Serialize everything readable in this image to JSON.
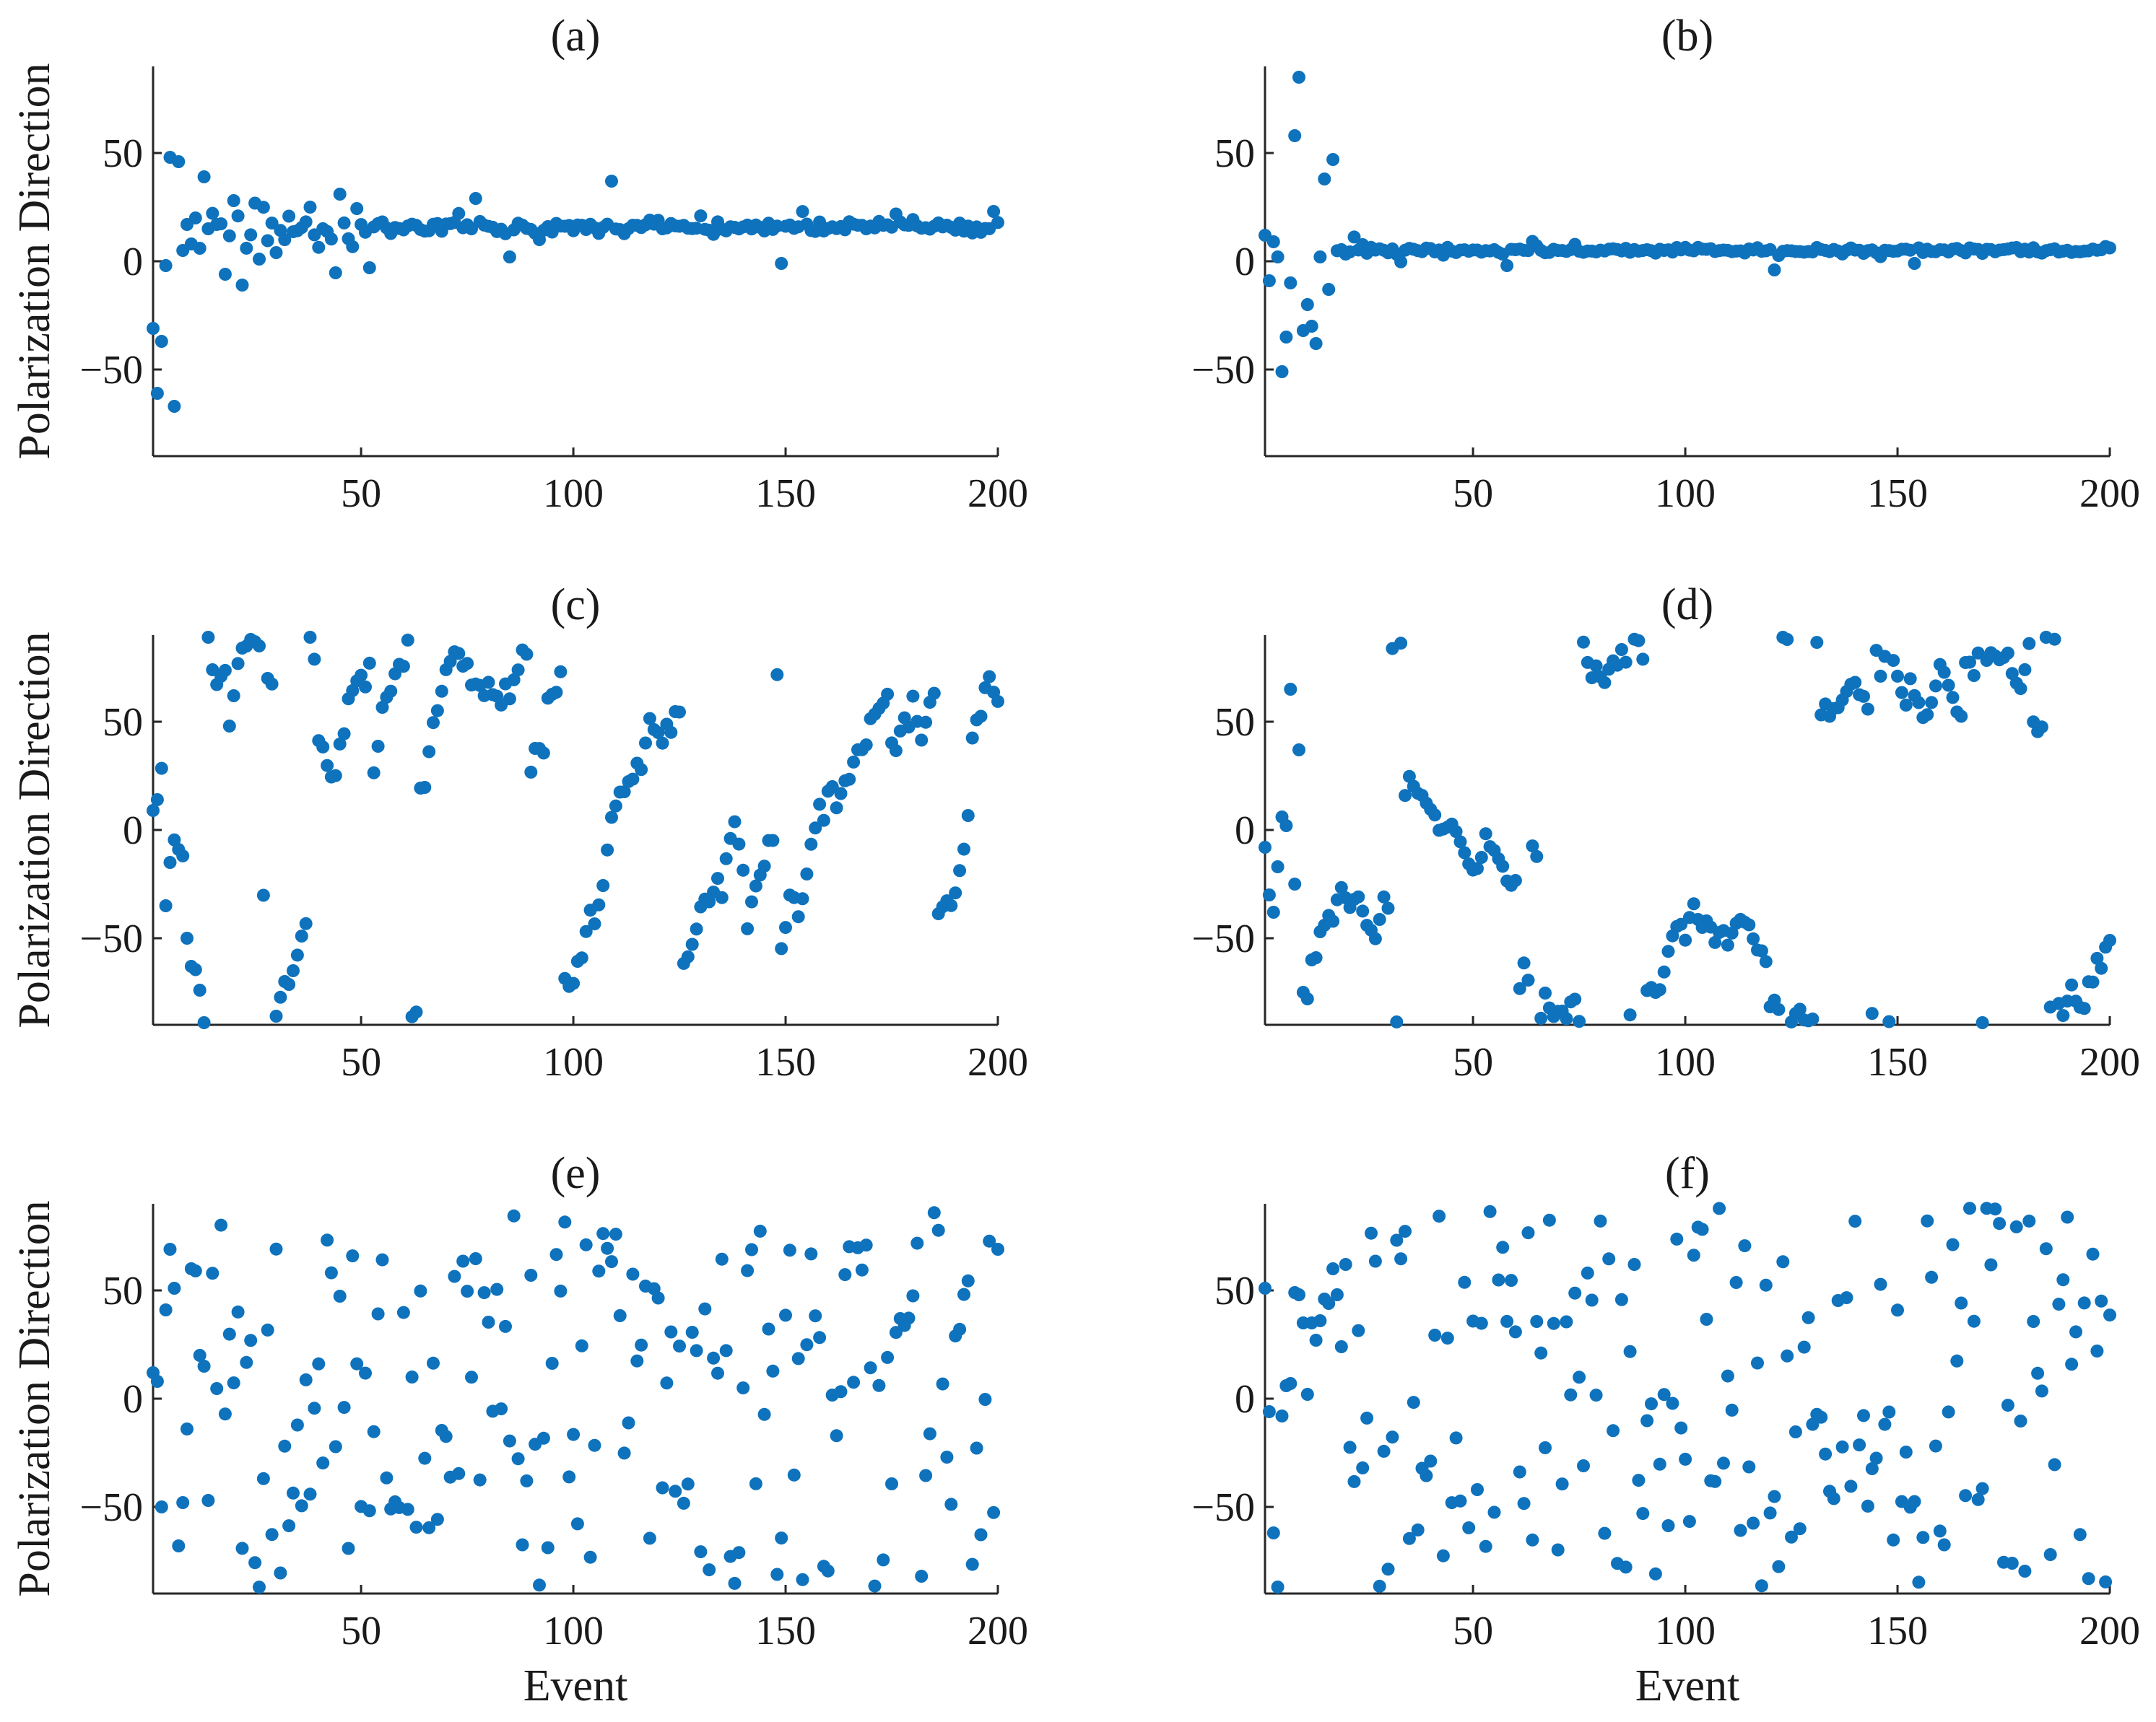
{
  "figure": {
    "ylabel": "Polarization Direction",
    "xlabel": "Event"
  },
  "chart_data": [
    {
      "type": "scatter",
      "title": "(a)",
      "xlabel": "",
      "ylabel": "Polarization Direction",
      "xlim": [
        1,
        200
      ],
      "ylim": [
        -90,
        90
      ],
      "xticks": [
        50,
        100,
        150,
        200
      ],
      "yticks": [
        -50,
        0,
        50
      ],
      "grid": false,
      "color": "#0e72bd",
      "gen": {
        "kind": "converge",
        "seed": 11,
        "center": 16,
        "early_n": 9,
        "early_spread": 75,
        "mid_n": 40,
        "mid_spread": 12,
        "late_spread": 3
      },
      "anchors": [
        [
          1,
          -31
        ],
        [
          2,
          -61
        ],
        [
          3,
          -37
        ],
        [
          4,
          -2
        ],
        [
          5,
          48
        ],
        [
          6,
          -67
        ],
        [
          7,
          46
        ],
        [
          8,
          5
        ],
        [
          9,
          17
        ],
        [
          10,
          8
        ],
        [
          11,
          20
        ],
        [
          12,
          6
        ],
        [
          13,
          39
        ],
        [
          14,
          15
        ],
        [
          16,
          17
        ],
        [
          18,
          -6
        ],
        [
          20,
          28
        ],
        [
          22,
          -11
        ],
        [
          26,
          1
        ],
        [
          30,
          4
        ],
        [
          38,
          25
        ],
        [
          45,
          31
        ],
        [
          52,
          -3
        ],
        [
          77,
          29
        ],
        [
          85,
          2
        ],
        [
          109,
          37
        ],
        [
          149,
          -1
        ],
        [
          199,
          23
        ]
      ]
    },
    {
      "type": "scatter",
      "title": "(b)",
      "xlabel": "",
      "ylabel": "",
      "xlim": [
        1,
        200
      ],
      "ylim": [
        -90,
        90
      ],
      "xticks": [
        50,
        100,
        150,
        200
      ],
      "yticks": [
        -50,
        0,
        50
      ],
      "grid": false,
      "color": "#0e72bd",
      "gen": {
        "kind": "converge",
        "seed": 23,
        "center": 5,
        "early_n": 17,
        "early_spread": 0,
        "mid_n": 20,
        "mid_spread": 3,
        "late_spread": 1.5
      },
      "anchors": [
        [
          1,
          12
        ],
        [
          2,
          -9
        ],
        [
          3,
          9
        ],
        [
          4,
          2
        ],
        [
          5,
          -51
        ],
        [
          6,
          -35
        ],
        [
          7,
          -10
        ],
        [
          8,
          58
        ],
        [
          9,
          85
        ],
        [
          10,
          -32
        ],
        [
          11,
          -20
        ],
        [
          12,
          -30
        ],
        [
          13,
          -38
        ],
        [
          14,
          2
        ],
        [
          15,
          38
        ],
        [
          16,
          -13
        ],
        [
          17,
          47
        ],
        [
          58,
          -2
        ],
        [
          121,
          -4
        ],
        [
          154,
          -1
        ]
      ]
    },
    {
      "type": "scatter",
      "title": "(c)",
      "xlabel": "",
      "ylabel": "Polarization Direction",
      "xlim": [
        1,
        200
      ],
      "ylim": [
        -90,
        90
      ],
      "xticks": [
        50,
        100,
        150,
        200
      ],
      "yticks": [
        -50,
        0,
        50
      ],
      "grid": false,
      "color": "#0e72bd",
      "gen": {
        "kind": "wrap",
        "seed": 37,
        "start": 10,
        "drift": [
          -8,
          14
        ]
      },
      "anchors": [
        [
          1,
          9
        ],
        [
          2,
          14
        ],
        [
          4,
          -35
        ],
        [
          5,
          -15
        ],
        [
          7,
          -9
        ],
        [
          9,
          -50
        ],
        [
          10,
          -63
        ],
        [
          12,
          -74
        ],
        [
          13,
          -89
        ],
        [
          14,
          89
        ],
        [
          15,
          74
        ],
        [
          17,
          71
        ],
        [
          19,
          48
        ],
        [
          20,
          62
        ],
        [
          22,
          84
        ],
        [
          24,
          88
        ],
        [
          26,
          85
        ],
        [
          28,
          70
        ],
        [
          30,
          -86
        ],
        [
          32,
          -70
        ],
        [
          34,
          -65
        ],
        [
          36,
          -49
        ],
        [
          38,
          89
        ]
      ]
    },
    {
      "type": "scatter",
      "title": "(d)",
      "xlabel": "",
      "ylabel": "",
      "xlim": [
        1,
        200
      ],
      "ylim": [
        -90,
        90
      ],
      "xticks": [
        50,
        100,
        150,
        200
      ],
      "yticks": [
        -50,
        0,
        50
      ],
      "grid": false,
      "color": "#0e72bd",
      "gen": {
        "kind": "wrap",
        "seed": 53,
        "start": -8,
        "drift": [
          -9,
          9
        ]
      },
      "anchors": [
        [
          1,
          -8
        ],
        [
          2,
          -30
        ],
        [
          3,
          -38
        ],
        [
          4,
          -17
        ],
        [
          5,
          6
        ],
        [
          6,
          2
        ],
        [
          7,
          65
        ],
        [
          8,
          -25
        ],
        [
          9,
          37
        ],
        [
          10,
          -75
        ],
        [
          11,
          -78
        ],
        [
          12,
          -60
        ],
        [
          13,
          -59
        ],
        [
          14,
          -47
        ],
        [
          15,
          -44
        ]
      ]
    },
    {
      "type": "scatter",
      "title": "(e)",
      "xlabel": "Event",
      "ylabel": "Polarization Direction",
      "xlim": [
        1,
        200
      ],
      "ylim": [
        -90,
        90
      ],
      "xticks": [
        50,
        100,
        150,
        200
      ],
      "yticks": [
        -50,
        0,
        50
      ],
      "grid": false,
      "color": "#0e72bd",
      "gen": {
        "kind": "random",
        "seed": 71
      },
      "anchors": [
        [
          1,
          12
        ],
        [
          2,
          8
        ],
        [
          3,
          -50
        ],
        [
          4,
          41
        ],
        [
          5,
          69
        ],
        [
          6,
          51
        ],
        [
          7,
          -68
        ],
        [
          8,
          -48
        ],
        [
          9,
          -14
        ],
        [
          10,
          60
        ],
        [
          11,
          59
        ],
        [
          12,
          20
        ],
        [
          13,
          15
        ],
        [
          14,
          -47
        ]
      ]
    },
    {
      "type": "scatter",
      "title": "(f)",
      "xlabel": "Event",
      "ylabel": "",
      "xlim": [
        1,
        200
      ],
      "ylim": [
        -90,
        90
      ],
      "xticks": [
        50,
        100,
        150,
        200
      ],
      "yticks": [
        -50,
        0,
        50
      ],
      "grid": false,
      "color": "#0e72bd",
      "gen": {
        "kind": "random",
        "seed": 97
      },
      "anchors": [
        [
          1,
          51
        ],
        [
          2,
          -6
        ],
        [
          3,
          -62
        ],
        [
          4,
          -87
        ],
        [
          5,
          -8
        ],
        [
          6,
          6
        ],
        [
          7,
          7
        ],
        [
          8,
          49
        ],
        [
          9,
          48
        ],
        [
          10,
          35
        ],
        [
          11,
          2
        ],
        [
          12,
          35
        ],
        [
          13,
          27
        ],
        [
          14,
          36
        ],
        [
          15,
          46
        ],
        [
          16,
          44
        ],
        [
          17,
          60
        ],
        [
          18,
          48
        ],
        [
          19,
          24
        ],
        [
          20,
          62
        ]
      ]
    }
  ]
}
